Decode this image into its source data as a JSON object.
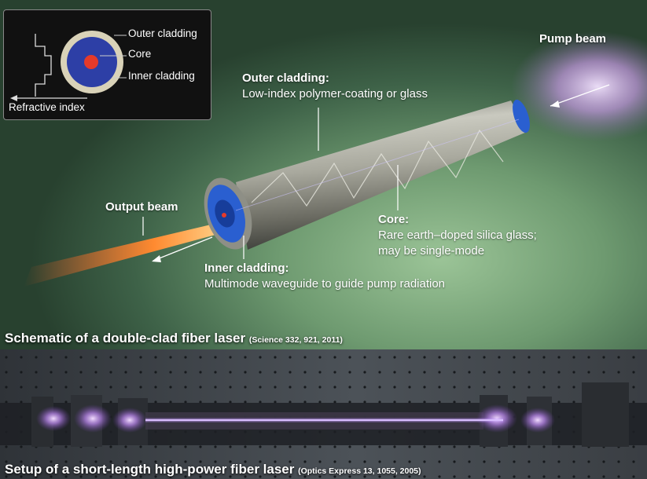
{
  "inset": {
    "outer_cladding": "Outer cladding",
    "core": "Core",
    "inner_cladding": "Inner cladding",
    "refractive_index": "Refractive index"
  },
  "labels": {
    "pump_beam": "Pump beam",
    "outer_cladding_title": "Outer cladding:",
    "outer_cladding_desc": "Low-index polymer-coating or glass",
    "output_beam": "Output beam",
    "core_title": "Core:",
    "core_desc_1": "Rare earth–doped silica glass;",
    "core_desc_2": "may be single-mode",
    "inner_cladding_title": "Inner cladding:",
    "inner_cladding_desc": "Multimode waveguide to guide pump radiation"
  },
  "captions": {
    "top_main": "Schematic of a double-clad fiber laser",
    "top_ref": "(Science 332, 921, 2011)",
    "bottom_main": "Setup of a short-length high-power fiber laser",
    "bottom_ref": "(Optics Express 13, 1055, 2005)"
  },
  "colors": {
    "pump_beam": "#d9b3f0",
    "output_beam": "#ff7a2a",
    "fiber_end": "#2a5fd0",
    "core_dot": "#e53a2a",
    "laser_line": "#c9a6ff"
  }
}
